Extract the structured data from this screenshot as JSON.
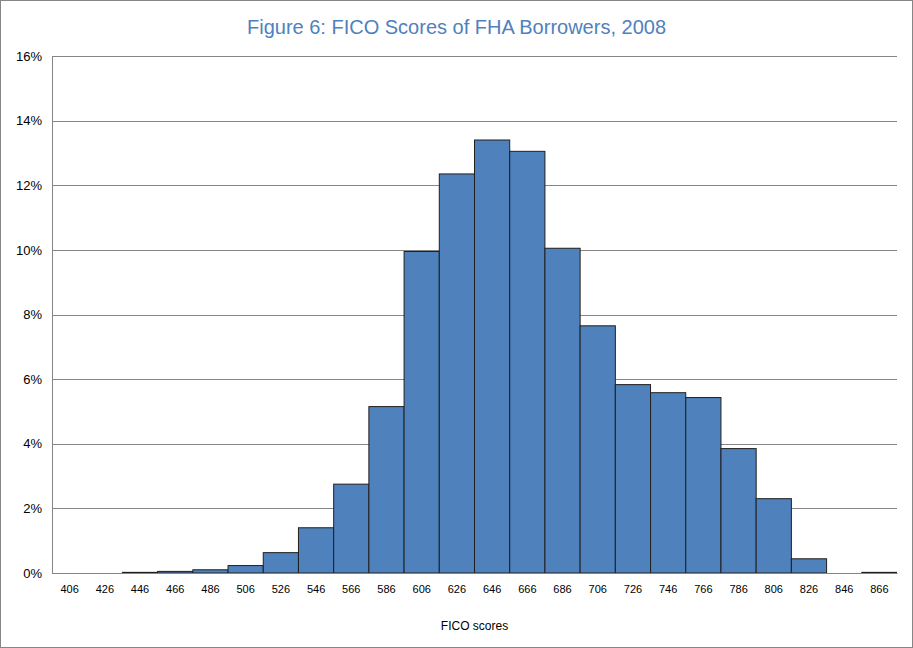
{
  "chart_data": {
    "type": "bar",
    "title": "Figure 6: FICO Scores of FHA Borrowers, 2008",
    "x_label": "FICO scores",
    "categories": [
      "406",
      "426",
      "446",
      "466",
      "486",
      "506",
      "526",
      "546",
      "566",
      "586",
      "606",
      "626",
      "646",
      "666",
      "686",
      "706",
      "726",
      "746",
      "766",
      "786",
      "806",
      "826",
      "846",
      "866"
    ],
    "values": [
      0,
      0,
      0.02,
      0.05,
      0.1,
      0.23,
      0.63,
      1.4,
      2.75,
      5.15,
      9.95,
      12.35,
      13.4,
      13.05,
      10.05,
      7.65,
      5.83,
      5.58,
      5.43,
      3.85,
      2.3,
      0.44,
      0,
      0.02
    ],
    "color": "#4f81bd",
    "ylim": [
      0,
      16
    ],
    "yticks": [
      {
        "value": 0,
        "label": "0%"
      },
      {
        "value": 2,
        "label": "2%"
      },
      {
        "value": 4,
        "label": "4%"
      },
      {
        "value": 6,
        "label": "6%"
      },
      {
        "value": 8,
        "label": "8%"
      },
      {
        "value": 10,
        "label": "10%"
      },
      {
        "value": 12,
        "label": "12%"
      },
      {
        "value": 14,
        "label": "14%"
      },
      {
        "value": 16,
        "label": "16%"
      }
    ],
    "grid": true
  }
}
